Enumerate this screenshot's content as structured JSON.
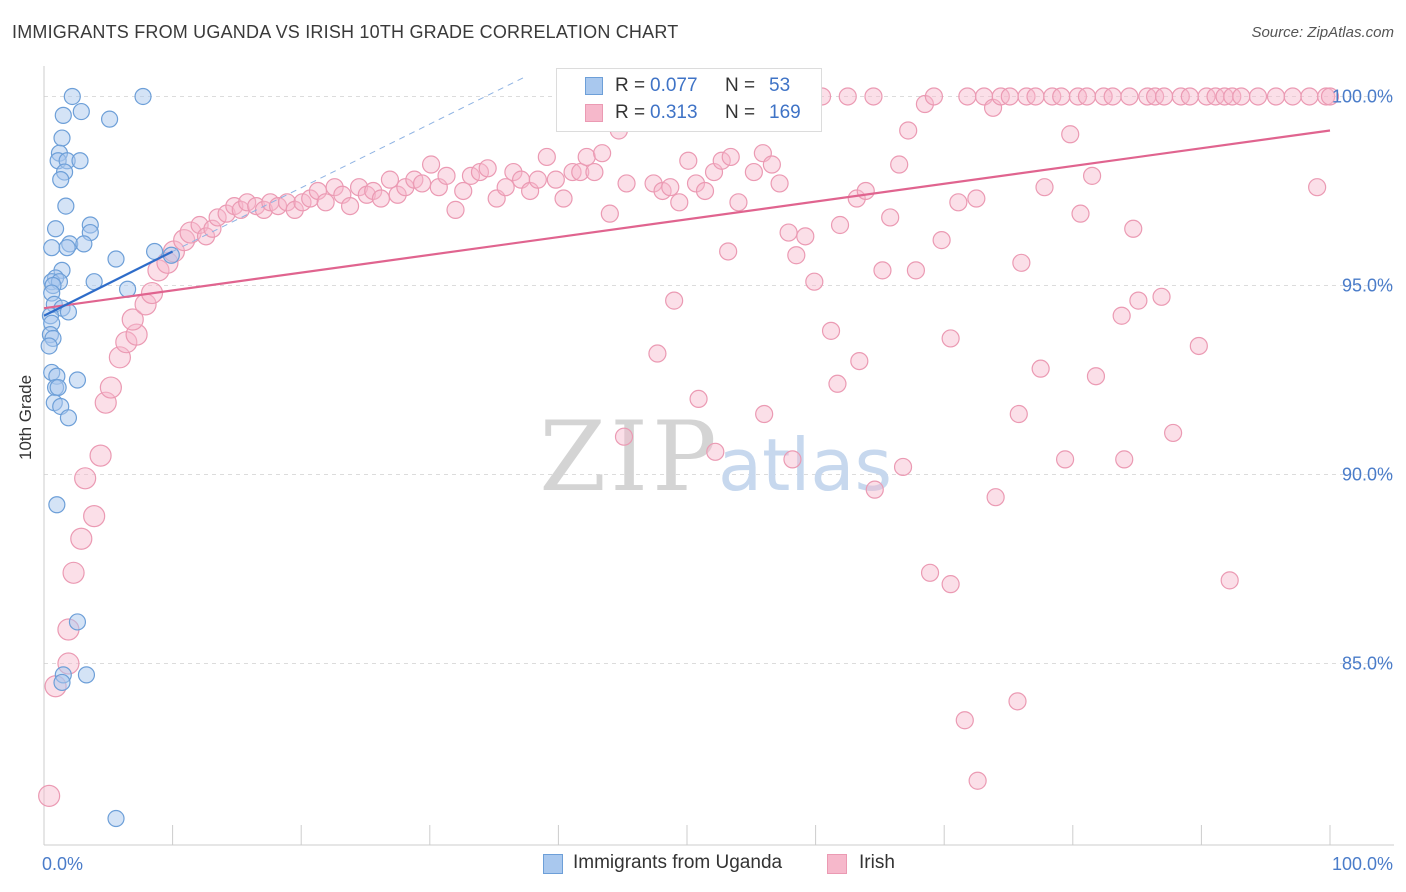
{
  "header": {
    "title": "IMMIGRANTS FROM UGANDA VS IRISH 10TH GRADE CORRELATION CHART",
    "source": "Source: ZipAtlas.com"
  },
  "watermark": {
    "zip": "ZIP",
    "atlas": "atlas"
  },
  "legend": {
    "r_label": "R =",
    "n_label": "N =",
    "series": [
      {
        "name": "Immigrants from Uganda",
        "r": "0.077",
        "n": "53"
      },
      {
        "name": "Irish",
        "r": "0.313",
        "n": "169"
      }
    ]
  },
  "colors": {
    "blue_fill": "#a9c8ee",
    "blue_stroke": "#6d9fd8",
    "blue_line": "#2e6cc9",
    "pink_fill": "#f6b8cb",
    "pink_stroke": "#eb9ab3",
    "pink_line": "#e0648f",
    "axis_text": "#4a7cc9",
    "grid": "#dcdcdc"
  },
  "chart_data": {
    "type": "scatter",
    "title": "IMMIGRANTS FROM UGANDA VS IRISH 10TH GRADE CORRELATION CHART",
    "xlabel": "",
    "ylabel": "10th Grade",
    "xlim": [
      0,
      100
    ],
    "ylim": [
      80.2,
      100.7
    ],
    "x_tick_labels": [
      "0.0%",
      "100.0%"
    ],
    "y_ticks": [
      85,
      90,
      95,
      100
    ],
    "y_tick_labels": [
      "85.0%",
      "90.0%",
      "95.0%",
      "100.0%"
    ],
    "series": [
      {
        "name": "Immigrants from Uganda",
        "color": "#a9c8ee",
        "trend": {
          "x": [
            0,
            10
          ],
          "y": [
            94.2,
            95.9
          ]
        },
        "trend_ext": {
          "x": [
            10,
            37.3
          ],
          "y": [
            95.9,
            100.5
          ]
        },
        "points": [
          [
            2.2,
            100.0
          ],
          [
            7.7,
            100.0
          ],
          [
            1.5,
            99.5
          ],
          [
            2.9,
            99.6
          ],
          [
            5.1,
            99.4
          ],
          [
            1.4,
            98.9
          ],
          [
            1.2,
            98.5
          ],
          [
            1.1,
            98.3
          ],
          [
            1.8,
            98.3
          ],
          [
            2.8,
            98.3
          ],
          [
            1.6,
            98.0
          ],
          [
            1.3,
            97.8
          ],
          [
            1.7,
            97.1
          ],
          [
            0.9,
            96.5
          ],
          [
            3.6,
            96.6
          ],
          [
            3.6,
            96.4
          ],
          [
            2.0,
            96.1
          ],
          [
            3.1,
            96.1
          ],
          [
            0.6,
            96.0
          ],
          [
            1.8,
            96.0
          ],
          [
            5.6,
            95.7
          ],
          [
            1.4,
            95.4
          ],
          [
            0.9,
            95.2
          ],
          [
            0.6,
            95.1
          ],
          [
            1.2,
            95.1
          ],
          [
            3.9,
            95.1
          ],
          [
            0.7,
            95.0
          ],
          [
            6.5,
            94.9
          ],
          [
            0.6,
            94.8
          ],
          [
            0.8,
            94.5
          ],
          [
            1.4,
            94.4
          ],
          [
            1.9,
            94.3
          ],
          [
            0.5,
            94.2
          ],
          [
            0.6,
            94.0
          ],
          [
            0.5,
            93.7
          ],
          [
            0.7,
            93.6
          ],
          [
            0.4,
            93.4
          ],
          [
            0.6,
            92.7
          ],
          [
            1.0,
            92.6
          ],
          [
            0.9,
            92.3
          ],
          [
            1.1,
            92.3
          ],
          [
            2.6,
            92.5
          ],
          [
            0.8,
            91.9
          ],
          [
            1.3,
            91.8
          ],
          [
            1.9,
            91.5
          ],
          [
            1.0,
            89.2
          ],
          [
            2.6,
            86.1
          ],
          [
            1.5,
            84.7
          ],
          [
            3.3,
            84.7
          ],
          [
            1.4,
            84.5
          ],
          [
            5.6,
            80.9
          ],
          [
            9.9,
            95.8
          ],
          [
            8.6,
            95.9
          ]
        ]
      },
      {
        "name": "Irish",
        "color": "#f6b8cb",
        "trend": {
          "x": [
            0,
            100
          ],
          "y": [
            94.4,
            99.1
          ]
        },
        "points": [
          [
            0.4,
            81.5
          ],
          [
            0.9,
            84.4
          ],
          [
            1.9,
            85.0
          ],
          [
            1.9,
            85.9
          ],
          [
            2.3,
            87.4
          ],
          [
            2.9,
            88.3
          ],
          [
            3.2,
            89.9
          ],
          [
            3.9,
            88.9
          ],
          [
            4.4,
            90.5
          ],
          [
            4.8,
            91.9
          ],
          [
            5.2,
            92.3
          ],
          [
            5.9,
            93.1
          ],
          [
            6.4,
            93.5
          ],
          [
            7.2,
            93.7
          ],
          [
            6.9,
            94.1
          ],
          [
            7.9,
            94.5
          ],
          [
            8.4,
            94.8
          ],
          [
            8.9,
            95.4
          ],
          [
            9.6,
            95.6
          ],
          [
            10.1,
            95.9
          ],
          [
            10.9,
            96.2
          ],
          [
            11.4,
            96.4
          ],
          [
            12.1,
            96.6
          ],
          [
            12.6,
            96.3
          ],
          [
            13.1,
            96.5
          ],
          [
            13.5,
            96.8
          ],
          [
            14.2,
            96.9
          ],
          [
            14.8,
            97.1
          ],
          [
            15.3,
            97.0
          ],
          [
            15.8,
            97.2
          ],
          [
            16.5,
            97.1
          ],
          [
            17.1,
            97.0
          ],
          [
            17.6,
            97.2
          ],
          [
            18.2,
            97.1
          ],
          [
            18.9,
            97.2
          ],
          [
            19.5,
            97.0
          ],
          [
            20.1,
            97.2
          ],
          [
            20.7,
            97.3
          ],
          [
            21.3,
            97.5
          ],
          [
            21.9,
            97.2
          ],
          [
            22.6,
            97.6
          ],
          [
            23.2,
            97.4
          ],
          [
            23.8,
            97.1
          ],
          [
            24.5,
            97.6
          ],
          [
            25.1,
            97.4
          ],
          [
            25.6,
            97.5
          ],
          [
            26.2,
            97.3
          ],
          [
            26.9,
            97.8
          ],
          [
            27.5,
            97.4
          ],
          [
            28.1,
            97.6
          ],
          [
            28.8,
            97.8
          ],
          [
            29.4,
            97.7
          ],
          [
            30.1,
            98.2
          ],
          [
            30.7,
            97.6
          ],
          [
            31.3,
            97.9
          ],
          [
            32.0,
            97.0
          ],
          [
            32.6,
            97.5
          ],
          [
            33.2,
            97.9
          ],
          [
            33.9,
            98.0
          ],
          [
            34.5,
            98.1
          ],
          [
            35.2,
            97.3
          ],
          [
            35.9,
            97.6
          ],
          [
            36.5,
            98.0
          ],
          [
            37.1,
            97.8
          ],
          [
            37.8,
            97.5
          ],
          [
            38.4,
            97.8
          ],
          [
            39.1,
            98.4
          ],
          [
            39.8,
            97.8
          ],
          [
            40.4,
            97.3
          ],
          [
            41.1,
            98.0
          ],
          [
            41.7,
            98.0
          ],
          [
            42.2,
            98.4
          ],
          [
            42.8,
            98.0
          ],
          [
            43.4,
            98.5
          ],
          [
            44.0,
            96.9
          ],
          [
            44.7,
            99.1
          ],
          [
            45.3,
            97.7
          ],
          [
            46.1,
            99.3
          ],
          [
            46.8,
            99.6
          ],
          [
            47.4,
            97.7
          ],
          [
            48.1,
            97.5
          ],
          [
            48.7,
            97.6
          ],
          [
            49.4,
            97.2
          ],
          [
            50.1,
            98.3
          ],
          [
            50.7,
            97.7
          ],
          [
            51.4,
            97.5
          ],
          [
            52.1,
            98.0
          ],
          [
            52.7,
            98.3
          ],
          [
            53.4,
            98.4
          ],
          [
            54.0,
            97.2
          ],
          [
            54.6,
            99.4
          ],
          [
            55.2,
            98.0
          ],
          [
            55.9,
            98.5
          ],
          [
            56.6,
            98.2
          ],
          [
            57.2,
            97.7
          ],
          [
            57.9,
            96.4
          ],
          [
            58.5,
            95.8
          ],
          [
            59.2,
            96.3
          ],
          [
            59.9,
            95.1
          ],
          [
            60.5,
            100.0
          ],
          [
            61.2,
            93.8
          ],
          [
            61.9,
            96.6
          ],
          [
            62.5,
            100.0
          ],
          [
            63.2,
            97.3
          ],
          [
            63.9,
            97.5
          ],
          [
            64.5,
            100.0
          ],
          [
            65.2,
            95.4
          ],
          [
            65.8,
            96.8
          ],
          [
            66.5,
            98.2
          ],
          [
            67.2,
            99.1
          ],
          [
            67.8,
            95.4
          ],
          [
            68.5,
            99.8
          ],
          [
            69.2,
            100.0
          ],
          [
            69.8,
            96.2
          ],
          [
            70.5,
            93.6
          ],
          [
            71.1,
            97.2
          ],
          [
            71.8,
            100.0
          ],
          [
            72.5,
            97.3
          ],
          [
            73.1,
            100.0
          ],
          [
            73.8,
            99.7
          ],
          [
            74.4,
            100.0
          ],
          [
            75.1,
            100.0
          ],
          [
            75.8,
            91.6
          ],
          [
            76.4,
            100.0
          ],
          [
            77.1,
            100.0
          ],
          [
            77.8,
            97.6
          ],
          [
            78.4,
            100.0
          ],
          [
            79.1,
            100.0
          ],
          [
            79.8,
            99.0
          ],
          [
            80.4,
            100.0
          ],
          [
            81.1,
            100.0
          ],
          [
            81.8,
            92.6
          ],
          [
            82.4,
            100.0
          ],
          [
            83.1,
            100.0
          ],
          [
            83.8,
            94.2
          ],
          [
            84.4,
            100.0
          ],
          [
            85.1,
            94.6
          ],
          [
            85.8,
            100.0
          ],
          [
            86.4,
            100.0
          ],
          [
            87.1,
            100.0
          ],
          [
            87.8,
            91.1
          ],
          [
            88.4,
            100.0
          ],
          [
            89.1,
            100.0
          ],
          [
            89.8,
            93.4
          ],
          [
            90.4,
            100.0
          ],
          [
            91.1,
            100.0
          ],
          [
            91.8,
            100.0
          ],
          [
            92.4,
            100.0
          ],
          [
            93.1,
            100.0
          ],
          [
            94.4,
            100.0
          ],
          [
            95.8,
            100.0
          ],
          [
            97.1,
            100.0
          ],
          [
            98.4,
            100.0
          ],
          [
            99.0,
            97.6
          ],
          [
            99.7,
            100.0
          ],
          [
            100.0,
            100.0
          ],
          [
            59.5,
            100.0
          ],
          [
            58.6,
            100.0
          ],
          [
            53.2,
            95.9
          ],
          [
            47.7,
            93.2
          ],
          [
            45.1,
            91.0
          ],
          [
            49.0,
            94.6
          ],
          [
            50.9,
            92.0
          ],
          [
            52.2,
            90.6
          ],
          [
            56.0,
            91.6
          ],
          [
            58.2,
            90.4
          ],
          [
            61.7,
            92.4
          ],
          [
            63.4,
            93.0
          ],
          [
            64.6,
            89.6
          ],
          [
            66.8,
            90.2
          ],
          [
            68.9,
            87.4
          ],
          [
            70.5,
            87.1
          ],
          [
            71.6,
            83.5
          ],
          [
            72.6,
            81.9
          ],
          [
            75.7,
            84.0
          ],
          [
            80.6,
            96.9
          ],
          [
            81.5,
            97.9
          ],
          [
            84.7,
            96.5
          ],
          [
            86.9,
            94.7
          ],
          [
            77.5,
            92.8
          ],
          [
            79.4,
            90.4
          ],
          [
            92.2,
            87.2
          ],
          [
            84.0,
            90.4
          ],
          [
            76.0,
            95.6
          ],
          [
            74.0,
            89.4
          ]
        ]
      }
    ]
  }
}
